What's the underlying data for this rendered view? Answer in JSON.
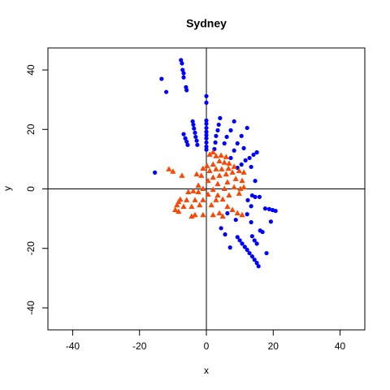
{
  "chart_data": {
    "type": "scatter",
    "title": "Sydney",
    "x_label": "x",
    "y_label": "y",
    "xlim": [
      -47.4,
      47.4
    ],
    "ylim": [
      -47.4,
      47.4
    ],
    "xticks": [
      -40,
      -20,
      0,
      20,
      40
    ],
    "yticks": [
      -40,
      -20,
      0,
      20,
      40
    ],
    "hline": 0,
    "vline": 0,
    "series": [
      {
        "color": "#0000ff",
        "marker": "circle",
        "x": [
          -7.6,
          -7.3,
          -7.1,
          -6.8,
          -6.8,
          -13.4,
          -12,
          -6.1,
          -5.9,
          0,
          0,
          0,
          0,
          0,
          0,
          0,
          0,
          0,
          0,
          0,
          -6.8,
          -6.3,
          -5.9,
          -5.6,
          -4.1,
          -3.9,
          -3.7,
          -3.4,
          -3.2,
          -2.9,
          -2.7,
          -15.4,
          4.1,
          3.7,
          3.4,
          2.9,
          2.7,
          2.4,
          8.3,
          7.3,
          6.1,
          5.4,
          12.2,
          10.5,
          9.3,
          8.3,
          7.3,
          15.1,
          14.1,
          12.9,
          11.7,
          10.5,
          9.3,
          11.2,
          13.4,
          14.6,
          13.7,
          14.6,
          15.9,
          12.4,
          13.4,
          12.2,
          13.4,
          17.6,
          18.8,
          19.8,
          20.7,
          19.3,
          16.1,
          16.8,
          13.7,
          14.4,
          15.1,
          18,
          9.3,
          10,
          10.7,
          11.5,
          12.2,
          12.9,
          13.7,
          14.4,
          15.1,
          15.6,
          4.4,
          5.6,
          7.1,
          6.3,
          8.8
        ],
        "values": [
          43.3,
          42.2,
          40,
          38.9,
          37.5,
          37,
          32.6,
          34.2,
          33.2,
          31.2,
          29,
          23,
          21.9,
          20.5,
          19.2,
          18.1,
          17,
          15.6,
          14.2,
          13.2,
          18.4,
          17,
          15.9,
          14.8,
          22.7,
          21.6,
          20.3,
          18.9,
          17.5,
          16.2,
          14.8,
          5.5,
          23.8,
          21.6,
          19.7,
          17.8,
          15.6,
          13.4,
          22.7,
          19.7,
          17.5,
          15.3,
          20.5,
          17.8,
          15.3,
          12.9,
          10.4,
          12.3,
          11.5,
          10.4,
          9.6,
          8.2,
          7.1,
          13.7,
          7.4,
          2.7,
          -2.2,
          -2.7,
          -2.7,
          -3.8,
          -5.8,
          -8.5,
          -11.2,
          -6.6,
          -6.8,
          -7.1,
          -7.4,
          -11,
          -14,
          -14.5,
          -15.9,
          -17.3,
          -18.4,
          -21.6,
          -16.2,
          -17.3,
          -18.4,
          -19.5,
          -20.5,
          -21.6,
          -22.7,
          -23.8,
          -24.9,
          -26,
          -13.2,
          -15.3,
          -19.7,
          -8.2,
          -10.4
        ]
      },
      {
        "color": "#ff4500",
        "marker": "triangle",
        "x": [
          -11.2,
          -10,
          -7.3,
          -2.9,
          -1.5,
          1,
          2,
          2.9,
          4.4,
          5.9,
          3.9,
          5.4,
          6.8,
          2,
          0.2,
          -1,
          1,
          2.9,
          4.6,
          6.6,
          8.3,
          9.8,
          11.2,
          7.8,
          5.9,
          3.9,
          2,
          0.5,
          8.8,
          10.7,
          6.3,
          3.4,
          -2.4,
          -1,
          2,
          5.4,
          8.3,
          10.2,
          11.2,
          -5.4,
          -3.9,
          -2.4,
          0.5,
          3.4,
          6.8,
          9.8,
          -7.8,
          -5.9,
          -3.4,
          -1,
          2.9,
          4.9,
          -8.8,
          -6.8,
          -4.4,
          -2,
          1.5,
          6.3,
          -9.3,
          -8.3,
          -3.4,
          -1,
          2,
          3.9,
          7.8,
          9.3,
          10.7,
          -4.4,
          4.9,
          -8.3
        ],
        "values": [
          6.6,
          5.8,
          4.4,
          4.9,
          4.4,
          11.5,
          12.3,
          11,
          11.2,
          10.7,
          9.3,
          8.8,
          8.5,
          8.2,
          7.7,
          6.8,
          6,
          6.6,
          6.6,
          6.8,
          7.4,
          6,
          5.5,
          5.5,
          4.9,
          4.4,
          3.8,
          2.7,
          3.3,
          2.7,
          2.2,
          1.6,
          1.1,
          0,
          -0.3,
          0,
          0.5,
          0,
          0.5,
          -1.1,
          -0.8,
          -1.1,
          -1.9,
          -2.2,
          -2.2,
          -1.6,
          -3.6,
          -3.8,
          -3.8,
          -3.8,
          -3.8,
          -3.6,
          -5.5,
          -6,
          -6,
          -5.5,
          -5.5,
          -6,
          -7.1,
          -7.7,
          -8.8,
          -8.8,
          -8.8,
          -8.2,
          -7.1,
          -8.2,
          -8.8,
          -9.3,
          -9.3,
          -4.4
        ]
      }
    ]
  }
}
